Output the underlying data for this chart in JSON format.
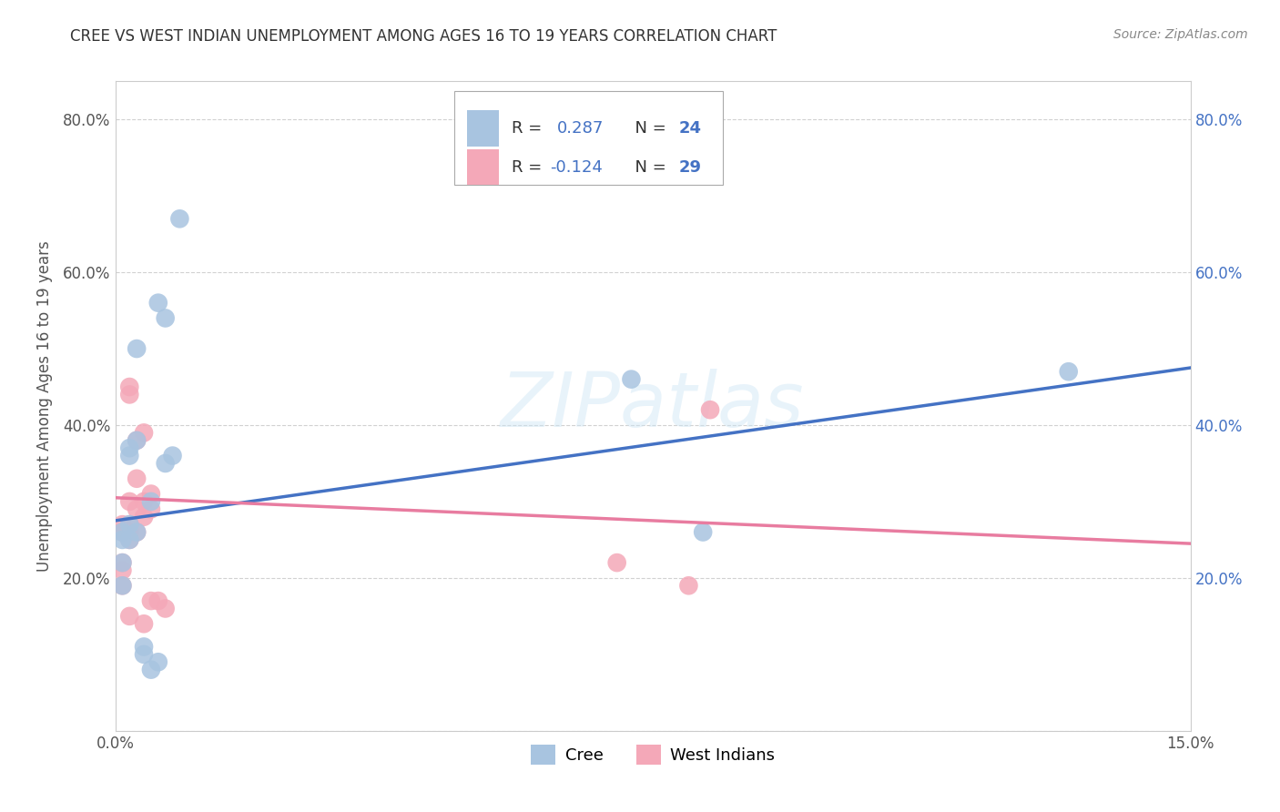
{
  "title": "CREE VS WEST INDIAN UNEMPLOYMENT AMONG AGES 16 TO 19 YEARS CORRELATION CHART",
  "source": "Source: ZipAtlas.com",
  "ylabel": "Unemployment Among Ages 16 to 19 years",
  "xlim": [
    0.0,
    0.15
  ],
  "ylim": [
    0.0,
    0.85
  ],
  "xtick_vals": [
    0.0,
    0.15
  ],
  "xtick_labels": [
    "0.0%",
    "15.0%"
  ],
  "ytick_vals": [
    0.0,
    0.2,
    0.4,
    0.6,
    0.8
  ],
  "ytick_labels_left": [
    "",
    "20.0%",
    "40.0%",
    "60.0%",
    "80.0%"
  ],
  "ytick_labels_right": [
    "",
    "20.0%",
    "40.0%",
    "60.0%",
    "80.0%"
  ],
  "cree_R": 0.287,
  "cree_N": 24,
  "west_indian_R": -0.124,
  "west_indian_N": 29,
  "cree_color": "#a8c4e0",
  "west_indian_color": "#f4a8b8",
  "cree_line_color": "#4472c4",
  "west_indian_line_color": "#e87ca0",
  "background_color": "#ffffff",
  "watermark": "ZIPatlas",
  "cree_line_y0": 0.275,
  "cree_line_y1": 0.475,
  "wi_line_y0": 0.305,
  "wi_line_y1": 0.245,
  "cree_points": [
    [
      0.001,
      0.19
    ],
    [
      0.001,
      0.22
    ],
    [
      0.001,
      0.25
    ],
    [
      0.001,
      0.26
    ],
    [
      0.002,
      0.25
    ],
    [
      0.002,
      0.27
    ],
    [
      0.002,
      0.36
    ],
    [
      0.002,
      0.37
    ],
    [
      0.003,
      0.26
    ],
    [
      0.003,
      0.38
    ],
    [
      0.003,
      0.5
    ],
    [
      0.004,
      0.1
    ],
    [
      0.004,
      0.11
    ],
    [
      0.005,
      0.3
    ],
    [
      0.005,
      0.08
    ],
    [
      0.006,
      0.09
    ],
    [
      0.006,
      0.56
    ],
    [
      0.007,
      0.35
    ],
    [
      0.007,
      0.54
    ],
    [
      0.008,
      0.36
    ],
    [
      0.009,
      0.67
    ],
    [
      0.072,
      0.46
    ],
    [
      0.082,
      0.26
    ],
    [
      0.133,
      0.47
    ]
  ],
  "west_indian_points": [
    [
      0.001,
      0.19
    ],
    [
      0.001,
      0.21
    ],
    [
      0.001,
      0.22
    ],
    [
      0.001,
      0.26
    ],
    [
      0.001,
      0.27
    ],
    [
      0.001,
      0.26
    ],
    [
      0.002,
      0.15
    ],
    [
      0.002,
      0.25
    ],
    [
      0.002,
      0.26
    ],
    [
      0.002,
      0.27
    ],
    [
      0.002,
      0.3
    ],
    [
      0.002,
      0.44
    ],
    [
      0.002,
      0.45
    ],
    [
      0.003,
      0.26
    ],
    [
      0.003,
      0.29
    ],
    [
      0.003,
      0.33
    ],
    [
      0.003,
      0.38
    ],
    [
      0.004,
      0.14
    ],
    [
      0.004,
      0.28
    ],
    [
      0.004,
      0.3
    ],
    [
      0.004,
      0.39
    ],
    [
      0.005,
      0.17
    ],
    [
      0.005,
      0.29
    ],
    [
      0.005,
      0.31
    ],
    [
      0.006,
      0.17
    ],
    [
      0.007,
      0.16
    ],
    [
      0.07,
      0.22
    ],
    [
      0.08,
      0.19
    ],
    [
      0.083,
      0.42
    ]
  ]
}
